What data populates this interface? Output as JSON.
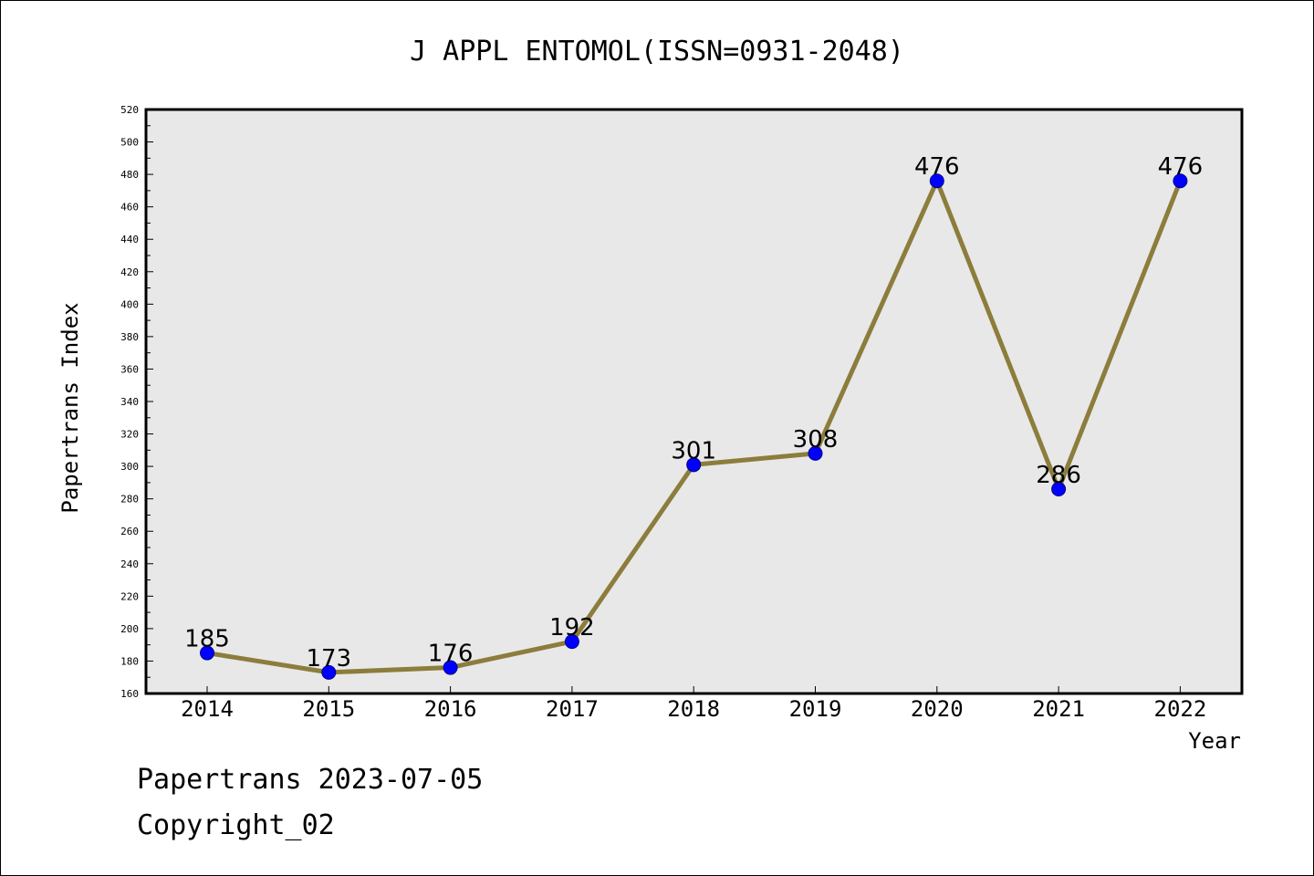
{
  "chart_data": {
    "type": "line",
    "title": "J APPL ENTOMOL(ISSN=0931-2048)",
    "xlabel": "Year",
    "ylabel": "Papertrans Index",
    "categories": [
      "2014",
      "2015",
      "2016",
      "2017",
      "2018",
      "2019",
      "2020",
      "2021",
      "2022"
    ],
    "values": [
      185,
      173,
      176,
      192,
      301,
      308,
      476,
      286,
      476
    ],
    "ylim": [
      160,
      520
    ],
    "yticks": [
      160,
      180,
      200,
      220,
      240,
      260,
      280,
      300,
      320,
      340,
      360,
      380,
      400,
      420,
      440,
      460,
      480,
      500,
      520
    ],
    "grid": false,
    "legend": "none",
    "colors": {
      "line": "#8c7d3c",
      "marker": "#0000ff",
      "plot_background": "#e8e8e8"
    }
  },
  "footer": {
    "line1": "Papertrans 2023-07-05",
    "line2": "Copyright_02"
  }
}
